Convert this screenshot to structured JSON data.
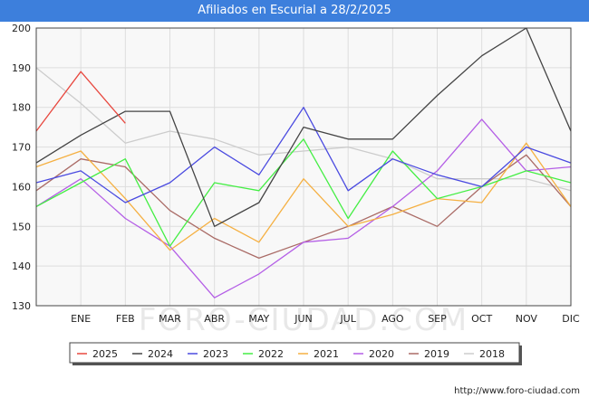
{
  "chart_data": {
    "type": "line",
    "title": "Afiliados en Escurial a 28/2/2025",
    "categories": [
      "",
      "ENE",
      "FEB",
      "MAR",
      "ABR",
      "MAY",
      "JUN",
      "JUL",
      "AGO",
      "SEP",
      "OCT",
      "NOV",
      "DIC"
    ],
    "ylim": [
      130,
      200
    ],
    "yticks": [
      130,
      140,
      150,
      160,
      170,
      180,
      190,
      200
    ],
    "grid": true,
    "legend_position": "bottom",
    "series": [
      {
        "name": "2025",
        "color": "#e8483f",
        "values": [
          174,
          189,
          176,
          null,
          null,
          null,
          null,
          null,
          null,
          null,
          null,
          null,
          null
        ]
      },
      {
        "name": "2024",
        "color": "#444444",
        "values": [
          166,
          173,
          179,
          179,
          150,
          156,
          175,
          172,
          172,
          183,
          193,
          200,
          174
        ]
      },
      {
        "name": "2023",
        "color": "#4a4ae0",
        "values": [
          161,
          164,
          156,
          161,
          170,
          163,
          180,
          159,
          167,
          163,
          160,
          170,
          166
        ]
      },
      {
        "name": "2022",
        "color": "#44ee44",
        "values": [
          155,
          161,
          167,
          145,
          161,
          159,
          172,
          152,
          169,
          157,
          160,
          164,
          161
        ]
      },
      {
        "name": "2021",
        "color": "#f5b042",
        "values": [
          165,
          169,
          157,
          144,
          152,
          146,
          162,
          150,
          153,
          157,
          156,
          171,
          155
        ]
      },
      {
        "name": "2020",
        "color": "#b45ee6",
        "values": [
          155,
          162,
          152,
          145,
          132,
          138,
          146,
          147,
          155,
          164,
          177,
          164,
          165
        ]
      },
      {
        "name": "2019",
        "color": "#aa6b66",
        "values": [
          159,
          167,
          165,
          154,
          147,
          142,
          146,
          150,
          155,
          150,
          160,
          168,
          155
        ]
      },
      {
        "name": "2018",
        "color": "#cccccc",
        "values": [
          190,
          181,
          171,
          174,
          172,
          168,
          169,
          170,
          167,
          162,
          162,
          162,
          159
        ]
      }
    ],
    "watermark": "FORO-CIUDAD.COM",
    "source": "http://www.foro-ciudad.com"
  }
}
